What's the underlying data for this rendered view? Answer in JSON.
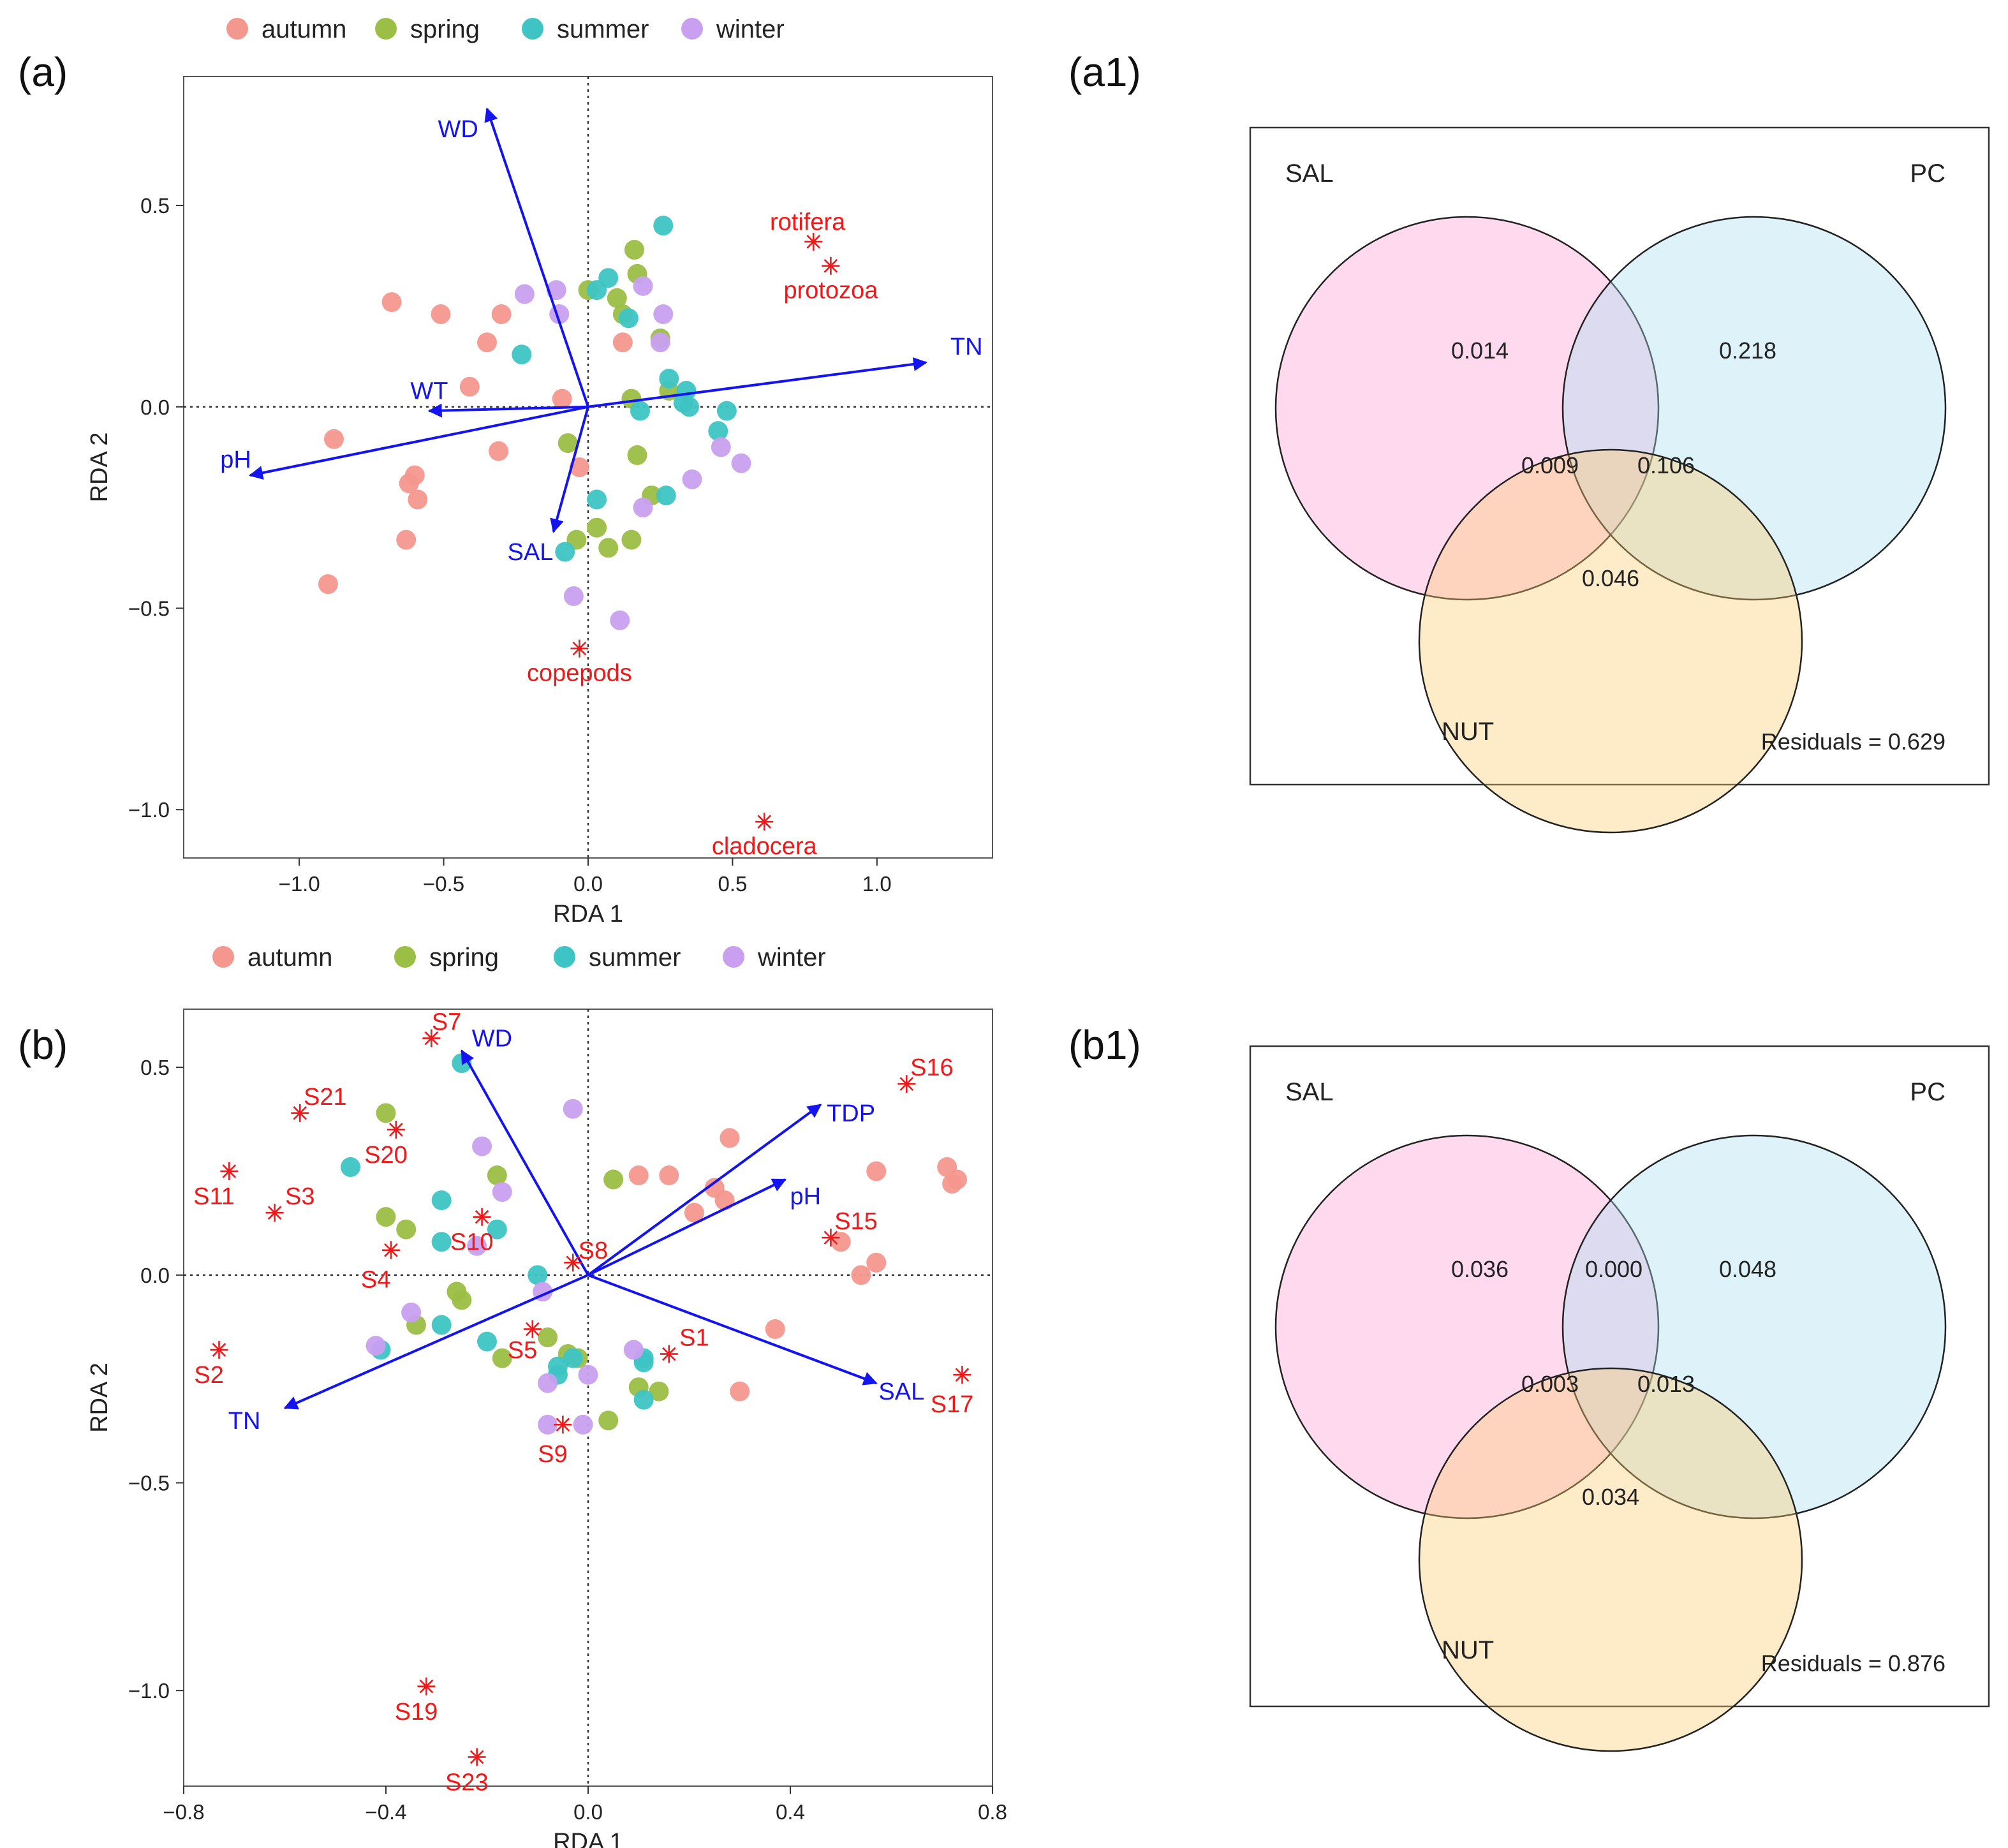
{
  "legend": {
    "groups": [
      {
        "name": "autumn",
        "color": "#F4978E"
      },
      {
        "name": "spring",
        "color": "#9BBE45"
      },
      {
        "name": "summer",
        "color": "#3EC4C4"
      },
      {
        "name": "winter",
        "color": "#C9A0F0"
      }
    ]
  },
  "chart_data": [
    {
      "id": "a",
      "type": "scatter",
      "panel_label": "(a)",
      "xlabel": "RDA 1",
      "ylabel": "RDA 2",
      "xlim": [
        -1.4,
        1.4
      ],
      "ylim": [
        -1.12,
        0.82
      ],
      "xticks": [
        {
          "v": -1.0,
          "t": "−1.0"
        },
        {
          "v": -0.5,
          "t": "−0.5"
        },
        {
          "v": 0.0,
          "t": "0.0"
        },
        {
          "v": 0.5,
          "t": "0.5"
        },
        {
          "v": 1.0,
          "t": "1.0"
        }
      ],
      "yticks": [
        {
          "v": -1.0,
          "t": "−1.0"
        },
        {
          "v": -0.5,
          "t": "−0.5"
        },
        {
          "v": 0.0,
          "t": "0.0"
        },
        {
          "v": 0.5,
          "t": "0.5"
        }
      ],
      "arrow_color": "#1414F0",
      "label_color": "#F01818",
      "arrows": [
        {
          "label": "WD",
          "x": -0.35,
          "y": 0.74,
          "lx": -0.45,
          "ly": 0.69
        },
        {
          "label": "TN",
          "x": 1.17,
          "y": 0.11,
          "lx": 1.31,
          "ly": 0.15
        },
        {
          "label": "WT",
          "x": -0.55,
          "y": -0.01,
          "lx": -0.55,
          "ly": 0.04
        },
        {
          "label": "pH",
          "x": -1.17,
          "y": -0.17,
          "lx": -1.22,
          "ly": -0.13
        },
        {
          "label": "SAL",
          "x": -0.12,
          "y": -0.31,
          "lx": -0.2,
          "ly": -0.36
        }
      ],
      "species": [
        {
          "label": "rotifera",
          "x": 0.78,
          "y": 0.41,
          "lx": 0.76,
          "ly": 0.46
        },
        {
          "label": "protozoa",
          "x": 0.84,
          "y": 0.35,
          "lx": 0.84,
          "ly": 0.29
        },
        {
          "label": "copepods",
          "x": -0.03,
          "y": -0.6,
          "lx": -0.03,
          "ly": -0.66
        },
        {
          "label": "cladocera",
          "x": 0.61,
          "y": -1.03,
          "lx": 0.61,
          "ly": -1.09
        }
      ],
      "points": [
        {
          "g": "autumn",
          "x": -0.68,
          "y": 0.26
        },
        {
          "g": "autumn",
          "x": -0.51,
          "y": 0.23
        },
        {
          "g": "autumn",
          "x": -0.3,
          "y": 0.23
        },
        {
          "g": "autumn",
          "x": -0.35,
          "y": 0.16
        },
        {
          "g": "autumn",
          "x": -0.41,
          "y": 0.05
        },
        {
          "g": "autumn",
          "x": -0.09,
          "y": 0.02
        },
        {
          "g": "autumn",
          "x": -0.88,
          "y": -0.08
        },
        {
          "g": "autumn",
          "x": -0.31,
          "y": -0.11
        },
        {
          "g": "autumn",
          "x": -0.6,
          "y": -0.17
        },
        {
          "g": "autumn",
          "x": -0.62,
          "y": -0.19
        },
        {
          "g": "autumn",
          "x": -0.59,
          "y": -0.23
        },
        {
          "g": "autumn",
          "x": -0.63,
          "y": -0.33
        },
        {
          "g": "autumn",
          "x": -0.9,
          "y": -0.44
        },
        {
          "g": "autumn",
          "x": 0.12,
          "y": 0.16
        },
        {
          "g": "autumn",
          "x": -0.03,
          "y": -0.15
        },
        {
          "g": "spring",
          "x": 0.16,
          "y": 0.39
        },
        {
          "g": "spring",
          "x": 0.17,
          "y": 0.33
        },
        {
          "g": "spring",
          "x": 0.0,
          "y": 0.29
        },
        {
          "g": "spring",
          "x": 0.1,
          "y": 0.27
        },
        {
          "g": "spring",
          "x": 0.12,
          "y": 0.23
        },
        {
          "g": "spring",
          "x": 0.25,
          "y": 0.17
        },
        {
          "g": "spring",
          "x": 0.15,
          "y": 0.02
        },
        {
          "g": "spring",
          "x": -0.07,
          "y": -0.09
        },
        {
          "g": "spring",
          "x": 0.17,
          "y": -0.12
        },
        {
          "g": "spring",
          "x": 0.22,
          "y": -0.22
        },
        {
          "g": "spring",
          "x": 0.03,
          "y": -0.3
        },
        {
          "g": "spring",
          "x": -0.04,
          "y": -0.33
        },
        {
          "g": "spring",
          "x": 0.15,
          "y": -0.33
        },
        {
          "g": "spring",
          "x": 0.07,
          "y": -0.35
        },
        {
          "g": "spring",
          "x": 0.28,
          "y": 0.04
        },
        {
          "g": "summer",
          "x": 0.26,
          "y": 0.45
        },
        {
          "g": "summer",
          "x": 0.07,
          "y": 0.32
        },
        {
          "g": "summer",
          "x": 0.03,
          "y": 0.29
        },
        {
          "g": "summer",
          "x": 0.14,
          "y": 0.22
        },
        {
          "g": "summer",
          "x": -0.23,
          "y": 0.13
        },
        {
          "g": "summer",
          "x": 0.28,
          "y": 0.07
        },
        {
          "g": "summer",
          "x": 0.34,
          "y": 0.04
        },
        {
          "g": "summer",
          "x": 0.33,
          "y": 0.01
        },
        {
          "g": "summer",
          "x": 0.18,
          "y": -0.01
        },
        {
          "g": "summer",
          "x": 0.48,
          "y": -0.01
        },
        {
          "g": "summer",
          "x": 0.45,
          "y": -0.06
        },
        {
          "g": "summer",
          "x": 0.27,
          "y": -0.22
        },
        {
          "g": "summer",
          "x": 0.03,
          "y": -0.23
        },
        {
          "g": "summer",
          "x": -0.08,
          "y": -0.36
        },
        {
          "g": "summer",
          "x": 0.35,
          "y": 0.0
        },
        {
          "g": "winter",
          "x": -0.22,
          "y": 0.28
        },
        {
          "g": "winter",
          "x": -0.11,
          "y": 0.29
        },
        {
          "g": "winter",
          "x": 0.19,
          "y": 0.3
        },
        {
          "g": "winter",
          "x": -0.1,
          "y": 0.23
        },
        {
          "g": "winter",
          "x": 0.26,
          "y": 0.23
        },
        {
          "g": "winter",
          "x": 0.25,
          "y": 0.16
        },
        {
          "g": "winter",
          "x": 0.46,
          "y": -0.1
        },
        {
          "g": "winter",
          "x": 0.53,
          "y": -0.14
        },
        {
          "g": "winter",
          "x": 0.36,
          "y": -0.18
        },
        {
          "g": "winter",
          "x": 0.19,
          "y": -0.25
        },
        {
          "g": "winter",
          "x": -0.05,
          "y": -0.47
        },
        {
          "g": "winter",
          "x": 0.11,
          "y": -0.53
        }
      ]
    },
    {
      "id": "b",
      "type": "scatter",
      "panel_label": "(b)",
      "xlabel": "RDA 1",
      "ylabel": "RDA 2",
      "xlim": [
        -0.8,
        0.8
      ],
      "ylim": [
        -1.23,
        0.64
      ],
      "xticks": [
        {
          "v": -0.8,
          "t": "−0.8"
        },
        {
          "v": -0.4,
          "t": "−0.4"
        },
        {
          "v": 0.0,
          "t": "0.0"
        },
        {
          "v": 0.4,
          "t": "0.4"
        },
        {
          "v": 0.8,
          "t": "0.8"
        }
      ],
      "yticks": [
        {
          "v": -1.0,
          "t": "−1.0"
        },
        {
          "v": -0.5,
          "t": "−0.5"
        },
        {
          "v": 0.0,
          "t": "0.0"
        },
        {
          "v": 0.5,
          "t": "0.5"
        }
      ],
      "arrow_color": "#1414F0",
      "label_color": "#F01818",
      "arrows": [
        {
          "label": "WD",
          "x": -0.25,
          "y": 0.54,
          "lx": -0.19,
          "ly": 0.57
        },
        {
          "label": "TDP",
          "x": 0.46,
          "y": 0.41,
          "lx": 0.52,
          "ly": 0.39
        },
        {
          "label": "pH",
          "x": 0.39,
          "y": 0.23,
          "lx": 0.43,
          "ly": 0.19
        },
        {
          "label": "SAL",
          "x": 0.57,
          "y": -0.26,
          "lx": 0.62,
          "ly": -0.28
        },
        {
          "label": "TN",
          "x": -0.6,
          "y": -0.32,
          "lx": -0.68,
          "ly": -0.35
        }
      ],
      "species": [
        {
          "label": "S7",
          "x": -0.31,
          "y": 0.57,
          "lx": -0.28,
          "ly": 0.61
        },
        {
          "label": "S16",
          "x": 0.63,
          "y": 0.46,
          "lx": 0.68,
          "ly": 0.5
        },
        {
          "label": "S21",
          "x": -0.57,
          "y": 0.39,
          "lx": -0.52,
          "ly": 0.43
        },
        {
          "label": "S20",
          "x": -0.38,
          "y": 0.35,
          "lx": -0.4,
          "ly": 0.29
        },
        {
          "label": "S11",
          "x": -0.71,
          "y": 0.25,
          "lx": -0.74,
          "ly": 0.19
        },
        {
          "label": "S3",
          "x": -0.62,
          "y": 0.15,
          "lx": -0.57,
          "ly": 0.19
        },
        {
          "label": "S10",
          "x": -0.21,
          "y": 0.14,
          "lx": -0.23,
          "ly": 0.08
        },
        {
          "label": "S15",
          "x": 0.48,
          "y": 0.09,
          "lx": 0.53,
          "ly": 0.13
        },
        {
          "label": "S8",
          "x": -0.03,
          "y": 0.03,
          "lx": 0.01,
          "ly": 0.06
        },
        {
          "label": "S4",
          "x": -0.39,
          "y": 0.06,
          "lx": -0.42,
          "ly": -0.01
        },
        {
          "label": "S5",
          "x": -0.11,
          "y": -0.13,
          "lx": -0.13,
          "ly": -0.18
        },
        {
          "label": "S1",
          "x": 0.16,
          "y": -0.19,
          "lx": 0.21,
          "ly": -0.15
        },
        {
          "label": "S2",
          "x": -0.73,
          "y": -0.18,
          "lx": -0.75,
          "ly": -0.24
        },
        {
          "label": "S17",
          "x": 0.74,
          "y": -0.24,
          "lx": 0.72,
          "ly": -0.31
        },
        {
          "label": "S9",
          "x": -0.05,
          "y": -0.36,
          "lx": -0.07,
          "ly": -0.43
        },
        {
          "label": "S19",
          "x": -0.32,
          "y": -0.99,
          "lx": -0.34,
          "ly": -1.05
        },
        {
          "label": "S23",
          "x": -0.22,
          "y": -1.16,
          "lx": -0.24,
          "ly": -1.22
        }
      ],
      "points": [
        {
          "g": "autumn",
          "x": 0.28,
          "y": 0.33
        },
        {
          "g": "autumn",
          "x": 0.1,
          "y": 0.24
        },
        {
          "g": "autumn",
          "x": 0.16,
          "y": 0.24
        },
        {
          "g": "autumn",
          "x": 0.25,
          "y": 0.21
        },
        {
          "g": "autumn",
          "x": 0.27,
          "y": 0.18
        },
        {
          "g": "autumn",
          "x": 0.21,
          "y": 0.15
        },
        {
          "g": "autumn",
          "x": 0.57,
          "y": 0.25
        },
        {
          "g": "autumn",
          "x": 0.71,
          "y": 0.26
        },
        {
          "g": "autumn",
          "x": 0.72,
          "y": 0.22
        },
        {
          "g": "autumn",
          "x": 0.73,
          "y": 0.23
        },
        {
          "g": "autumn",
          "x": 0.5,
          "y": 0.08
        },
        {
          "g": "autumn",
          "x": 0.57,
          "y": 0.03
        },
        {
          "g": "autumn",
          "x": 0.54,
          "y": 0.0
        },
        {
          "g": "autumn",
          "x": 0.37,
          "y": -0.13
        },
        {
          "g": "autumn",
          "x": 0.3,
          "y": -0.28
        },
        {
          "g": "spring",
          "x": -0.4,
          "y": 0.39
        },
        {
          "g": "spring",
          "x": -0.18,
          "y": 0.24
        },
        {
          "g": "spring",
          "x": 0.05,
          "y": 0.23
        },
        {
          "g": "spring",
          "x": -0.4,
          "y": 0.14
        },
        {
          "g": "spring",
          "x": -0.36,
          "y": 0.11
        },
        {
          "g": "spring",
          "x": -0.26,
          "y": -0.04
        },
        {
          "g": "spring",
          "x": -0.25,
          "y": -0.06
        },
        {
          "g": "spring",
          "x": -0.34,
          "y": -0.12
        },
        {
          "g": "spring",
          "x": -0.08,
          "y": -0.15
        },
        {
          "g": "spring",
          "x": -0.17,
          "y": -0.2
        },
        {
          "g": "spring",
          "x": -0.04,
          "y": -0.19
        },
        {
          "g": "spring",
          "x": -0.02,
          "y": -0.2
        },
        {
          "g": "spring",
          "x": 0.1,
          "y": -0.27
        },
        {
          "g": "spring",
          "x": 0.14,
          "y": -0.28
        },
        {
          "g": "spring",
          "x": 0.04,
          "y": -0.35
        },
        {
          "g": "summer",
          "x": -0.25,
          "y": 0.51
        },
        {
          "g": "summer",
          "x": -0.47,
          "y": 0.26
        },
        {
          "g": "summer",
          "x": -0.29,
          "y": 0.18
        },
        {
          "g": "summer",
          "x": -0.29,
          "y": 0.08
        },
        {
          "g": "summer",
          "x": -0.18,
          "y": 0.11
        },
        {
          "g": "summer",
          "x": -0.1,
          "y": 0.0
        },
        {
          "g": "summer",
          "x": -0.29,
          "y": -0.12
        },
        {
          "g": "summer",
          "x": -0.2,
          "y": -0.16
        },
        {
          "g": "summer",
          "x": -0.41,
          "y": -0.18
        },
        {
          "g": "summer",
          "x": -0.03,
          "y": -0.2
        },
        {
          "g": "summer",
          "x": 0.11,
          "y": -0.2
        },
        {
          "g": "summer",
          "x": -0.06,
          "y": -0.22
        },
        {
          "g": "summer",
          "x": -0.06,
          "y": -0.24
        },
        {
          "g": "summer",
          "x": 0.11,
          "y": -0.21
        },
        {
          "g": "summer",
          "x": 0.11,
          "y": -0.3
        },
        {
          "g": "winter",
          "x": -0.03,
          "y": 0.4
        },
        {
          "g": "winter",
          "x": -0.21,
          "y": 0.31
        },
        {
          "g": "winter",
          "x": -0.17,
          "y": 0.2
        },
        {
          "g": "winter",
          "x": -0.22,
          "y": 0.07
        },
        {
          "g": "winter",
          "x": -0.09,
          "y": -0.04
        },
        {
          "g": "winter",
          "x": -0.35,
          "y": -0.09
        },
        {
          "g": "winter",
          "x": -0.42,
          "y": -0.17
        },
        {
          "g": "winter",
          "x": 0.09,
          "y": -0.18
        },
        {
          "g": "winter",
          "x": 0.0,
          "y": -0.24
        },
        {
          "g": "winter",
          "x": -0.08,
          "y": -0.26
        },
        {
          "g": "winter",
          "x": -0.08,
          "y": -0.36
        },
        {
          "g": "winter",
          "x": -0.01,
          "y": -0.36
        }
      ]
    },
    {
      "id": "a1",
      "type": "venn",
      "panel_label": "(a1)",
      "sets": [
        "SAL",
        "PC",
        "NUT"
      ],
      "colors": {
        "SAL": "#FF9DD4",
        "PC": "#A6DCF0",
        "NUT": "#FCCB6E"
      },
      "values": {
        "SAL_only": "0.014",
        "PC_only": "0.218",
        "SAL_NUT": "0.009",
        "PC_NUT": "0.106",
        "NUT_only": "0.046"
      },
      "residuals": "Residuals = 0.629"
    },
    {
      "id": "b1",
      "type": "venn",
      "panel_label": "(b1)",
      "sets": [
        "SAL",
        "PC",
        "NUT"
      ],
      "colors": {
        "SAL": "#FF9DD4",
        "PC": "#A6DCF0",
        "NUT": "#FCCB6E"
      },
      "values": {
        "SAL_only": "0.036",
        "SAL_PC": "0.000",
        "PC_only": "0.048",
        "SAL_NUT": "0.003",
        "PC_NUT": "0.013",
        "NUT_only": "0.034"
      },
      "residuals": "Residuals = 0.876"
    }
  ]
}
